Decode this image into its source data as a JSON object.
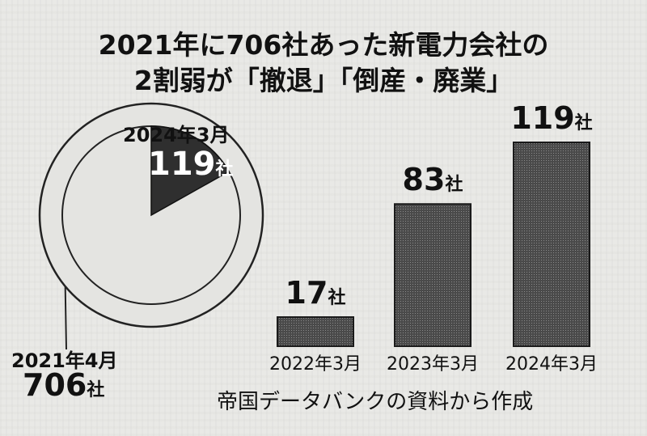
{
  "title": {
    "line1": "2021年に706社あった新電力会社の",
    "line2": "2割弱が「撤退」「倒産・廃業」"
  },
  "pie": {
    "top_label": "2024年3月",
    "slice_value": "119",
    "slice_unit": "社",
    "bottom_label": "2021年4月",
    "total_value": "706",
    "total_unit": "社"
  },
  "source": "帝国データバンクの資料から作成",
  "chart_data": [
    {
      "type": "pie",
      "total": 706,
      "slices": [
        {
          "label": "2024年3月",
          "value": 119
        },
        {
          "label": "2021年4月",
          "value": 706
        }
      ]
    },
    {
      "type": "bar",
      "categories": [
        "2022年3月",
        "2023年3月",
        "2024年3月"
      ],
      "values": [
        17,
        83,
        119
      ],
      "value_labels": [
        "17",
        "83",
        "119"
      ],
      "unit": "社"
    }
  ],
  "colors": {
    "pie_slice": "#2f2f2f",
    "pie_body": "#e4e4e1",
    "bar_fill": "#3a3a3a",
    "background": "#e9e9e6"
  }
}
